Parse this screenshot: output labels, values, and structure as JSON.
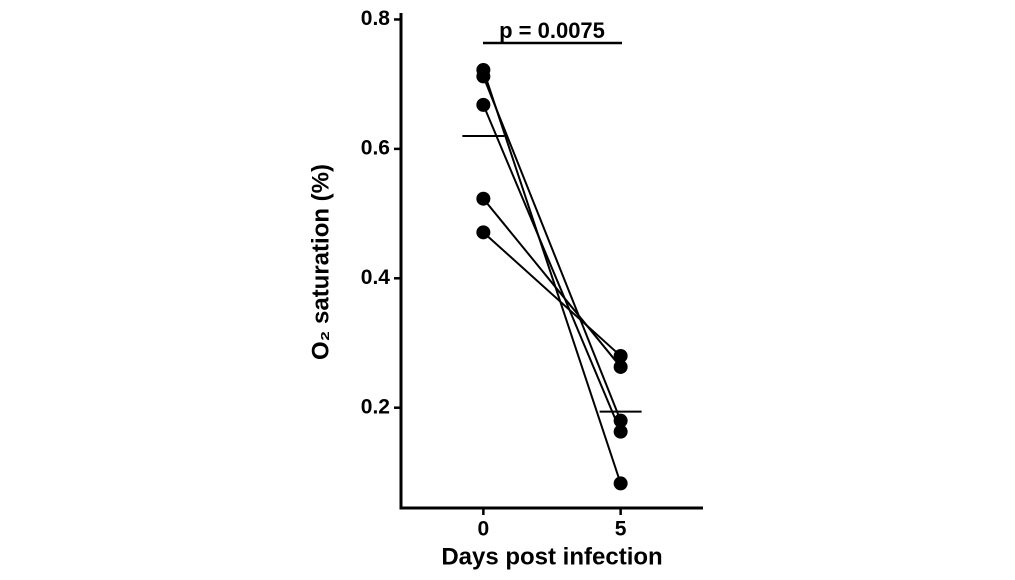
{
  "chart_data": {
    "type": "paired-dot",
    "annotation": "p = 0.0075",
    "xlabel": "Days post infection",
    "ylabel": "O₂ saturation (%)",
    "x": [
      0,
      5
    ],
    "xlim": [
      -3,
      8
    ],
    "xticks": [
      0,
      5
    ],
    "ylim": [
      0.045,
      0.81
    ],
    "yticks": [
      0.2,
      0.4,
      0.6,
      0.8
    ],
    "color": "#000000",
    "series": [
      {
        "values": [
          0.722,
          0.083
        ]
      },
      {
        "values": [
          0.712,
          0.18
        ]
      },
      {
        "values": [
          0.668,
          0.163
        ]
      },
      {
        "values": [
          0.523,
          0.263
        ]
      },
      {
        "values": [
          0.471,
          0.28
        ]
      }
    ],
    "means": [
      0.62,
      0.194
    ]
  }
}
